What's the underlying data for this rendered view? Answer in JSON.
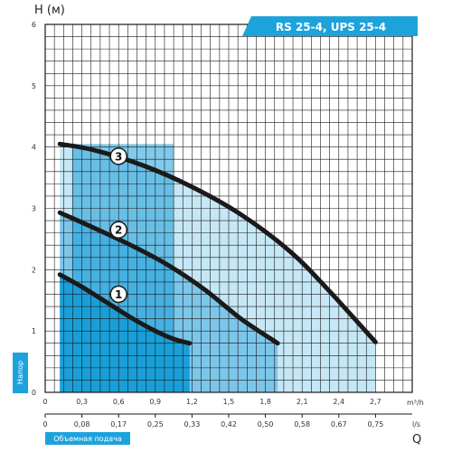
{
  "chart_data": {
    "type": "line",
    "title": "RS 25-4, UPS 25-4",
    "ylabel": "H (м)",
    "xlabel": "Q",
    "y_axis_badge": "Напор",
    "x_axis_badge": "Объемная подача",
    "x_unit_primary": "m³/h",
    "x_unit_secondary": "l/s",
    "xlim": [
      0,
      3.0
    ],
    "ylim": [
      0,
      6
    ],
    "y_ticks": [
      "0",
      "1",
      "2",
      "3",
      "4",
      "5",
      "6"
    ],
    "x_ticks_primary": [
      "0",
      "0,3",
      "0,6",
      "0,9",
      "1,2",
      "1,5",
      "1,8",
      "2,1",
      "2,4",
      "2,7"
    ],
    "x_ticks_secondary": [
      "0",
      "0,08",
      "0,17",
      "0,25",
      "0,33",
      "0,42",
      "0,50",
      "0,58",
      "0,67",
      "0,75"
    ],
    "grid": true,
    "series": [
      {
        "name": "1",
        "x": [
          0.12,
          0.3,
          0.5,
          0.7,
          0.9,
          1.05,
          1.18
        ],
        "y": [
          1.92,
          1.72,
          1.47,
          1.22,
          1.0,
          0.87,
          0.8
        ]
      },
      {
        "name": "2",
        "x": [
          0.12,
          0.4,
          0.7,
          1.0,
          1.3,
          1.6,
          1.9
        ],
        "y": [
          2.93,
          2.68,
          2.4,
          2.08,
          1.68,
          1.2,
          0.8
        ]
      },
      {
        "name": "3",
        "x": [
          0.12,
          0.4,
          0.8,
          1.2,
          1.6,
          2.0,
          2.3,
          2.7
        ],
        "y": [
          4.05,
          3.95,
          3.7,
          3.35,
          2.9,
          2.3,
          1.7,
          0.82
        ]
      }
    ]
  },
  "colors": {
    "region_dark": "#1a9fd8",
    "region_mid": "#7cc6ea",
    "region_light": "#c6e7f6",
    "curve": "#1a1a1a",
    "banner": "#1da3dc",
    "badge": "#1da3dc",
    "grid": "#1a1a1a"
  }
}
